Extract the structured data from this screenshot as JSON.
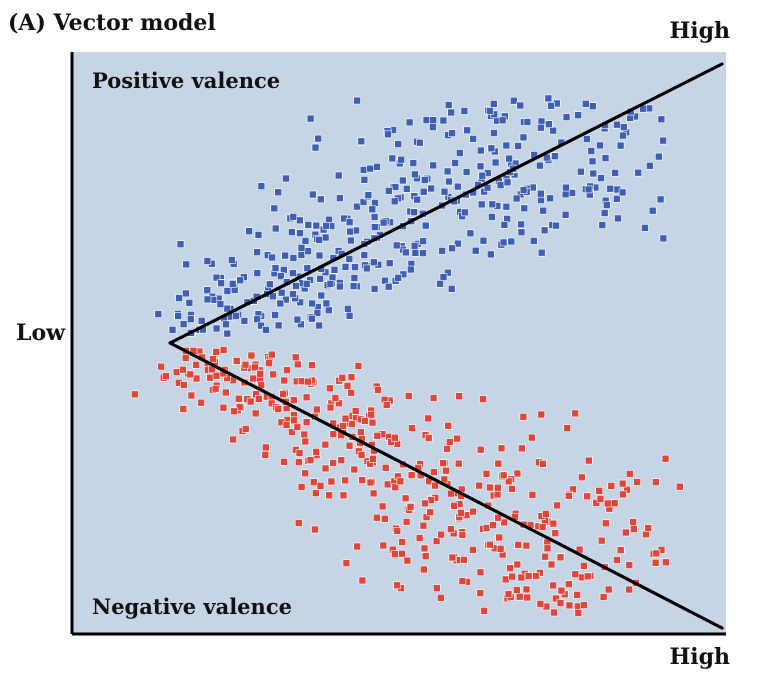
{
  "figure_label": "(A)  Vector model",
  "axis_labels": {
    "top_right": "High",
    "left_middle": "Low",
    "bottom_right": "High"
  },
  "colors": {
    "panel": "#c6d5e6",
    "positive": "#3e5fb4",
    "negative": "#e0473a",
    "vector": "#000000",
    "axis": "#000000"
  },
  "chart_data": {
    "type": "scatter",
    "title": "(A)  Vector model",
    "xlabel": "",
    "ylabel": "",
    "x_axis": {
      "low_label": "",
      "high_label": "High",
      "range": [
        0,
        100
      ]
    },
    "y_axis": {
      "low_label": "Low",
      "high_label": "High",
      "range": [
        -100,
        100
      ]
    },
    "grid": false,
    "legend": "none",
    "annotations": [
      "Positive valence",
      "Negative valence"
    ],
    "vectors": [
      {
        "from": [
          15,
          0
        ],
        "to": [
          100,
          100
        ]
      },
      {
        "from": [
          15,
          0
        ],
        "to": [
          100,
          -100
        ]
      }
    ],
    "series": [
      {
        "name": "Positive valence",
        "color": "#3e5fb4",
        "vector_end": [
          100,
          100
        ],
        "count": 420,
        "x_range": [
          12,
          92
        ],
        "y_range": [
          3,
          85
        ]
      },
      {
        "name": "Negative valence",
        "color": "#e0473a",
        "vector_end": [
          100,
          -100
        ],
        "count": 420,
        "x_range": [
          2,
          93
        ],
        "y_range": [
          -93,
          -2
        ]
      }
    ]
  }
}
